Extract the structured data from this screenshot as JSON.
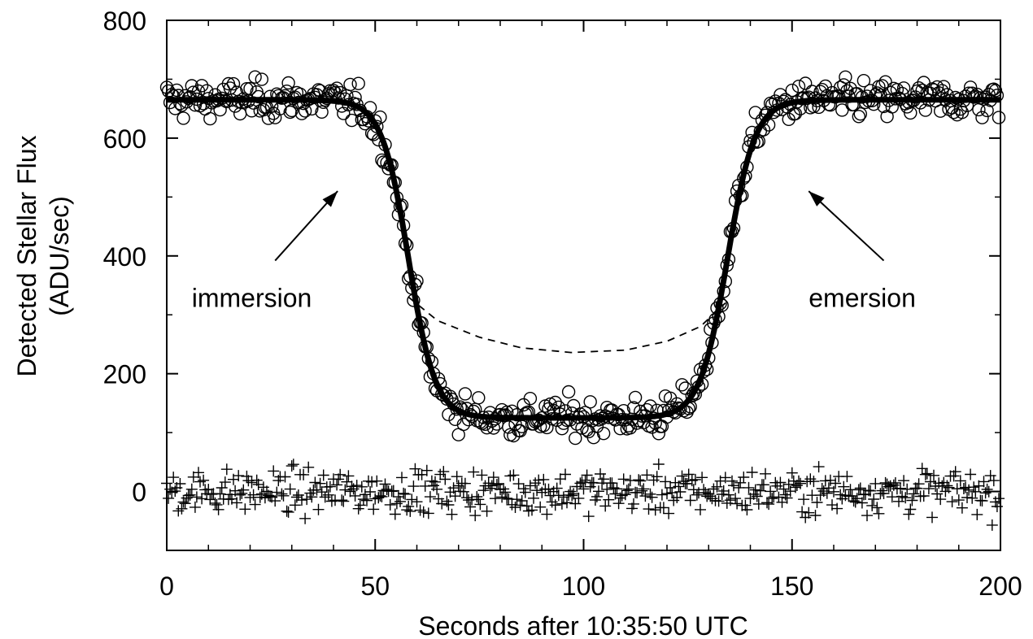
{
  "chart_data": {
    "type": "scatter",
    "xlabel": "Seconds after 10:35:50 UTC",
    "ylabel_line1": "Detected Stellar Flux",
    "ylabel_line2": "(ADU/sec)",
    "xlim": [
      0,
      200
    ],
    "ylim": [
      -100,
      800
    ],
    "x_ticks": [
      0,
      50,
      100,
      150,
      200
    ],
    "x_tick_labels": [
      "0",
      "50",
      "100",
      "150",
      "200"
    ],
    "y_ticks": [
      0,
      200,
      400,
      600,
      800
    ],
    "y_tick_labels": [
      "0",
      "200",
      "400",
      "600",
      "800"
    ],
    "grid": false,
    "series": [
      {
        "marker": "circle",
        "model": {
          "baseline": 665,
          "floor": 125,
          "immersion_mid": 58,
          "immersion_width": 3.2,
          "emersion_mid": 134.5,
          "emersion_width": 3.3,
          "scatter": 16,
          "step": 0.4
        }
      },
      {
        "marker": "plus",
        "model": {
          "center": 0,
          "scatter": 18,
          "step": 0.4
        }
      }
    ],
    "fit_curve": {
      "style": "solid",
      "points": [
        [
          0,
          668
        ],
        [
          30,
          668
        ],
        [
          38,
          660
        ],
        [
          44,
          590
        ],
        [
          50,
          470
        ],
        [
          54,
          380
        ],
        [
          57,
          300
        ],
        [
          59,
          230
        ],
        [
          61,
          180
        ],
        [
          64,
          150
        ],
        [
          68,
          135
        ],
        [
          75,
          128
        ],
        [
          100,
          125
        ],
        [
          125,
          128
        ],
        [
          129,
          140
        ],
        [
          131,
          180
        ],
        [
          133,
          260
        ],
        [
          135,
          340
        ],
        [
          138,
          420
        ],
        [
          142,
          500
        ],
        [
          146,
          570
        ],
        [
          150,
          620
        ],
        [
          155,
          650
        ],
        [
          160,
          665
        ],
        [
          170,
          668
        ],
        [
          200,
          668
        ]
      ]
    },
    "unocculted_model": {
      "style": "dashed",
      "points": [
        [
          58,
          330
        ],
        [
          65,
          290
        ],
        [
          75,
          262
        ],
        [
          85,
          244
        ],
        [
          97,
          236
        ],
        [
          110,
          240
        ],
        [
          120,
          255
        ],
        [
          128,
          280
        ],
        [
          134,
          320
        ]
      ]
    },
    "annotations": [
      {
        "text": "immersion",
        "label_at": [
          6,
          330
        ],
        "arrow_from": [
          26,
          392
        ],
        "arrow_to": [
          41,
          510
        ]
      },
      {
        "text": "emersion",
        "label_at": [
          154,
          330
        ],
        "arrow_from": [
          172,
          392
        ],
        "arrow_to": [
          154,
          510
        ]
      }
    ]
  }
}
